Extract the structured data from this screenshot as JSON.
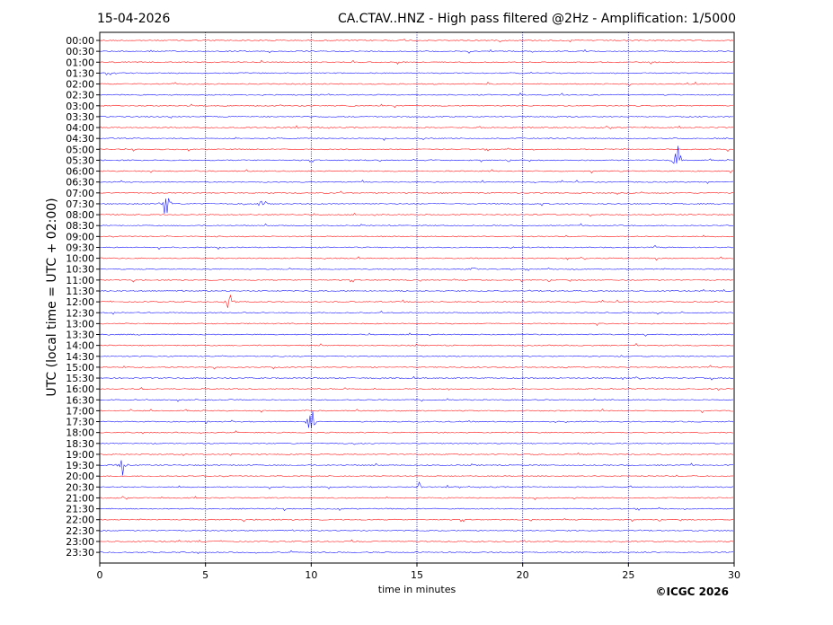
{
  "header": {
    "date": "15-04-2026",
    "station_title": "CA.CTAV..HNZ - High pass filtered @2Hz - Amplification: 1/5000"
  },
  "footer": {
    "copyright": "©ICGC 2026"
  },
  "chart_data": {
    "type": "line",
    "title": "CA.CTAV..HNZ - High pass filtered @2Hz - Amplification: 1/5000",
    "xlabel": "time in minutes",
    "ylabel": "UTC (local time = UTC + 02:00)",
    "xlim": [
      0,
      30
    ],
    "x_ticks": [
      0,
      5,
      10,
      15,
      20,
      25,
      30
    ],
    "x_tick_labels": [
      "0",
      "5",
      "10",
      "15",
      "20",
      "25",
      "30"
    ],
    "y_tick_labels": [
      "00:00",
      "00:30",
      "01:00",
      "01:30",
      "02:00",
      "02:30",
      "03:00",
      "03:30",
      "04:00",
      "04:30",
      "05:00",
      "05:30",
      "06:00",
      "06:30",
      "07:00",
      "07:30",
      "08:00",
      "08:30",
      "09:00",
      "09:30",
      "10:00",
      "10:30",
      "11:00",
      "11:30",
      "12:00",
      "12:30",
      "13:00",
      "13:30",
      "14:00",
      "14:30",
      "15:00",
      "15:30",
      "16:00",
      "16:30",
      "17:00",
      "17:30",
      "18:00",
      "18:30",
      "19:00",
      "19:30",
      "20:00",
      "20:30",
      "21:00",
      "21:30",
      "22:00",
      "22:30",
      "23:00",
      "23:30"
    ],
    "grid": "vertical dotted at 5-minute marks",
    "trace_colors": [
      "#ff0000",
      "#0000ff"
    ],
    "events": [
      {
        "row": "05:30",
        "minute": 27.3,
        "amplitude": 2.0
      },
      {
        "row": "07:30",
        "minute": 3.1,
        "amplitude": 2.0
      },
      {
        "row": "07:30",
        "minute": 7.7,
        "amplitude": 0.8
      },
      {
        "row": "10:30",
        "minute": 17.7,
        "amplitude": 0.5
      },
      {
        "row": "12:00",
        "minute": 6.1,
        "amplitude": 1.5
      },
      {
        "row": "17:30",
        "minute": 10.0,
        "amplitude": 2.2
      },
      {
        "row": "19:30",
        "minute": 1.1,
        "amplitude": 1.3
      },
      {
        "row": "20:30",
        "minute": 15.1,
        "amplitude": 0.5
      }
    ]
  }
}
